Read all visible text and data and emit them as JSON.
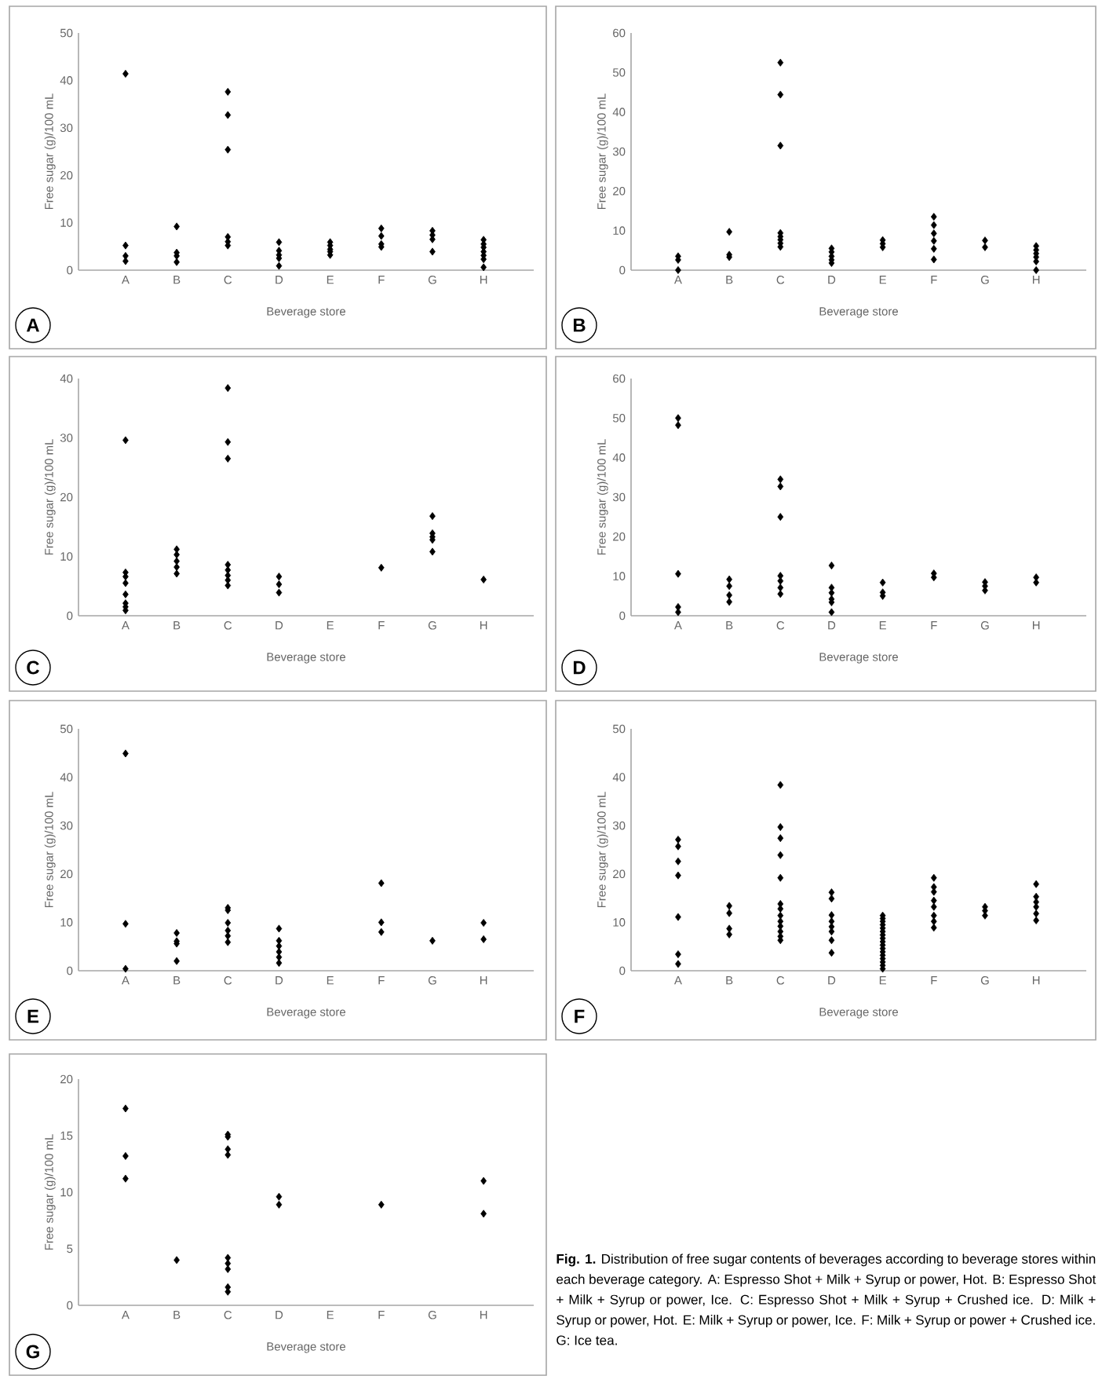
{
  "chart_data": [
    {
      "type": "scatter",
      "xlabel": "Beverage store",
      "ylabel": "Free sugar (g)/100 mL",
      "annotations": [
        "A"
      ],
      "categories": [
        "A",
        "B",
        "C",
        "D",
        "E",
        "F",
        "G",
        "H"
      ],
      "ylim": [
        0,
        50
      ],
      "yticks": [
        0,
        10,
        20,
        30,
        40,
        50
      ],
      "marker": "diamond",
      "series": [
        {
          "color": "#000000",
          "x": [
            "A",
            "A",
            "A",
            "A",
            "B",
            "B",
            "B",
            "B",
            "C",
            "C",
            "C",
            "C",
            "C",
            "C",
            "C",
            "C",
            "D",
            "D",
            "D",
            "D",
            "D",
            "E",
            "E",
            "E",
            "E",
            "E",
            "F",
            "F",
            "F",
            "F",
            "G",
            "G",
            "G",
            "G",
            "H",
            "H",
            "H",
            "H",
            "H",
            "H",
            "H"
          ],
          "values": [
            41.4,
            5.2,
            3.0,
            1.9,
            9.2,
            3.7,
            3.0,
            1.7,
            37.6,
            32.7,
            25.4,
            7.0,
            null,
            6.0,
            null,
            5.2,
            5.9,
            4.1,
            3.2,
            2.5,
            0.9,
            5.9,
            5.2,
            4.4,
            3.9,
            3.2,
            8.8,
            7.2,
            5.5,
            4.9,
            8.3,
            7.4,
            6.5,
            3.9,
            6.4,
            5.5,
            4.8,
            3.9,
            3.1,
            2.3,
            0.6
          ]
        }
      ]
    },
    {
      "type": "scatter",
      "xlabel": "Beverage store",
      "ylabel": "Free sugar (g)/100 mL",
      "annotations": [
        "B"
      ],
      "categories": [
        "A",
        "B",
        "C",
        "D",
        "E",
        "F",
        "G",
        "H"
      ],
      "ylim": [
        0,
        60
      ],
      "yticks": [
        0,
        10,
        20,
        30,
        40,
        50,
        60
      ],
      "marker": "diamond",
      "series": [
        {
          "color": "#000000",
          "x": [
            "A",
            "A",
            "A",
            "B",
            "B",
            "B",
            "C",
            "C",
            "C",
            "C",
            "C",
            "C",
            "C",
            "C",
            "D",
            "D",
            "D",
            "D",
            "D",
            "E",
            "E",
            "E",
            "F",
            "F",
            "F",
            "F",
            "F",
            "F",
            "G",
            "G",
            "H",
            "H",
            "H",
            "H",
            "H",
            "H"
          ],
          "values": [
            3.5,
            2.6,
            0,
            9.7,
            3.9,
            3.3,
            52.5,
            44.4,
            31.5,
            9.4,
            8.5,
            7.7,
            6.8,
            5.9,
            5.5,
            4.6,
            3.5,
            2.6,
            1.8,
            7.6,
            6.7,
            5.8,
            13.5,
            11.4,
            9.3,
            7.4,
            5.4,
            2.7,
            7.5,
            5.8,
            6.1,
            5.1,
            4.2,
            3.3,
            2.2,
            0
          ]
        }
      ]
    },
    {
      "type": "scatter",
      "xlabel": "Beverage store",
      "ylabel": "Free sugar (g)/100 mL",
      "annotations": [
        "C"
      ],
      "categories": [
        "A",
        "B",
        "C",
        "D",
        "E",
        "F",
        "G",
        "H"
      ],
      "ylim": [
        0,
        40
      ],
      "yticks": [
        0,
        10,
        20,
        30,
        40
      ],
      "marker": "diamond",
      "series": [
        {
          "color": "#000000",
          "x": [
            "A",
            "A",
            "A",
            "A",
            "A",
            "A",
            "A",
            "A",
            "B",
            "B",
            "B",
            "B",
            "B",
            "C",
            "C",
            "C",
            "C",
            "C",
            "C",
            "C",
            "C",
            "D",
            "D",
            "D",
            "F",
            "G",
            "G",
            "G",
            "G",
            "G",
            "H"
          ],
          "values": [
            29.6,
            7.3,
            6.6,
            5.5,
            3.6,
            2.1,
            1.5,
            0.9,
            11.2,
            10.3,
            9.2,
            8.2,
            7.1,
            38.4,
            29.3,
            26.5,
            8.6,
            7.7,
            6.8,
            6.0,
            5.1,
            6.6,
            5.3,
            3.9,
            8.1,
            16.8,
            13.9,
            13.3,
            12.8,
            10.8,
            6.1
          ]
        }
      ]
    },
    {
      "type": "scatter",
      "xlabel": "Beverage store",
      "ylabel": "Free sugar (g)/100 mL",
      "annotations": [
        "D"
      ],
      "categories": [
        "A",
        "B",
        "C",
        "D",
        "E",
        "F",
        "G",
        "H"
      ],
      "ylim": [
        0,
        60
      ],
      "yticks": [
        0,
        10,
        20,
        30,
        40,
        50,
        60
      ],
      "marker": "diamond",
      "series": [
        {
          "color": "#000000",
          "x": [
            "A",
            "A",
            "A",
            "A",
            "A",
            "A",
            "B",
            "B",
            "B",
            "B",
            "C",
            "C",
            "C",
            "C",
            "C",
            "C",
            "C",
            "D",
            "D",
            "D",
            "D",
            "D",
            "D",
            "E",
            "E",
            "E",
            "F",
            "F",
            "G",
            "G",
            "G",
            "H",
            "H"
          ],
          "values": [
            50.0,
            48.2,
            10.6,
            2.2,
            null,
            0.9,
            9.2,
            7.5,
            5.2,
            3.5,
            34.5,
            32.7,
            25.0,
            10.1,
            8.8,
            7.1,
            5.5,
            12.7,
            7.1,
            5.8,
            4.2,
            3.4,
            0.9,
            8.4,
            5.9,
            5.0,
            10.7,
            9.7,
            8.5,
            7.5,
            6.4,
            9.7,
            8.4
          ]
        }
      ]
    },
    {
      "type": "scatter",
      "xlabel": "Beverage store",
      "ylabel": "Free sugar (g)/100 mL",
      "annotations": [
        "E"
      ],
      "categories": [
        "A",
        "B",
        "C",
        "D",
        "E",
        "F",
        "G",
        "H"
      ],
      "ylim": [
        0,
        50
      ],
      "yticks": [
        0,
        10,
        20,
        30,
        40,
        50
      ],
      "marker": "diamond",
      "series": [
        {
          "color": "#000000",
          "x": [
            "A",
            "A",
            "A",
            "A",
            "B",
            "B",
            "B",
            "B",
            "C",
            "C",
            "C",
            "C",
            "C",
            "C",
            "D",
            "D",
            "D",
            "D",
            "D",
            "D",
            "F",
            "F",
            "F",
            "G",
            "H",
            "H"
          ],
          "values": [
            44.9,
            9.7,
            null,
            0.4,
            7.8,
            6.1,
            5.6,
            2.0,
            13.0,
            12.5,
            9.9,
            8.3,
            7.2,
            5.9,
            8.7,
            6.2,
            5.1,
            3.9,
            2.8,
            1.6,
            18.1,
            10.0,
            8.0,
            6.2,
            9.9,
            6.5
          ]
        }
      ]
    },
    {
      "type": "scatter",
      "xlabel": "Beverage store",
      "ylabel": "Free sugar (g)/100 mL",
      "annotations": [
        "F"
      ],
      "categories": [
        "A",
        "B",
        "C",
        "D",
        "E",
        "F",
        "G",
        "H"
      ],
      "ylim": [
        0,
        50
      ],
      "yticks": [
        0,
        10,
        20,
        30,
        40,
        50
      ],
      "marker": "diamond",
      "series": [
        {
          "color": "#000000",
          "x": [
            "A",
            "A",
            "A",
            "A",
            "A",
            "A",
            "A",
            "B",
            "B",
            "B",
            "B",
            "C",
            "C",
            "C",
            "C",
            "C",
            "C",
            "C",
            "C",
            "C",
            "C",
            "C",
            "C",
            "C",
            "D",
            "D",
            "D",
            "D",
            "D",
            "D",
            "D",
            "D",
            "E",
            "E",
            "E",
            "E",
            "E",
            "E",
            "E",
            "E",
            "E",
            "E",
            "E",
            "E",
            "E",
            "E",
            "E",
            "E",
            "E",
            "F",
            "F",
            "F",
            "F",
            "F",
            "F",
            "F",
            "F",
            "G",
            "G",
            "G",
            "H",
            "H",
            "H",
            "H",
            "H",
            "H"
          ],
          "values": [
            27.1,
            25.7,
            22.6,
            19.7,
            11.1,
            3.4,
            1.4,
            13.4,
            11.9,
            8.7,
            7.5,
            38.4,
            29.7,
            27.4,
            23.9,
            19.2,
            13.8,
            12.8,
            11.4,
            10.2,
            9.2,
            8.1,
            7.1,
            6.3,
            16.2,
            14.9,
            11.5,
            10.2,
            9.1,
            8.1,
            6.3,
            3.7,
            11.4,
            10.8,
            10.2,
            9.5,
            8.8,
            8.1,
            7.4,
            6.7,
            6.0,
            5.3,
            4.6,
            3.9,
            3.2,
            2.5,
            1.8,
            1.1,
            0.4,
            19.2,
            17.3,
            16.3,
            14.5,
            13.2,
            11.4,
            10.2,
            8.9,
            13.2,
            12.4,
            11.4,
            17.9,
            15.3,
            14.2,
            13.2,
            11.8,
            10.4
          ]
        }
      ]
    },
    {
      "type": "scatter",
      "xlabel": "Beverage store",
      "ylabel": "Free sugar (g)/100 mL",
      "annotations": [
        "G"
      ],
      "categories": [
        "A",
        "B",
        "C",
        "D",
        "E",
        "F",
        "G",
        "H"
      ],
      "ylim": [
        0,
        20
      ],
      "yticks": [
        0,
        5,
        10,
        15,
        20
      ],
      "marker": "diamond",
      "series": [
        {
          "color": "#000000",
          "x": [
            "A",
            "A",
            "A",
            "B",
            "C",
            "C",
            "C",
            "C",
            "C",
            "C",
            "C",
            "C",
            "C",
            "D",
            "D",
            "F",
            "H",
            "H"
          ],
          "values": [
            17.4,
            13.2,
            11.2,
            4.0,
            15.1,
            14.9,
            13.8,
            13.3,
            4.2,
            3.7,
            3.2,
            1.6,
            1.2,
            9.6,
            8.9,
            8.9,
            11.0,
            8.1
          ]
        }
      ]
    },
    {
      "type": "other",
      "annotations": [
        "**Fig. 1.** Distribution of free sugar contents of beverages according to beverage stores within each beverage category. A: Espresso Shot + Milk + Syrup or power, Hot. B: Espresso Shot + Milk + Syrup or power, Ice. C: Espresso Shot + Milk + Syrup + Crushed ice. D: Milk + Syrup or power, Hot. E: Milk + Syrup or power, Ice. F: Milk + Syrup or power + Crushed ice. G: Ice tea."
      ]
    }
  ]
}
